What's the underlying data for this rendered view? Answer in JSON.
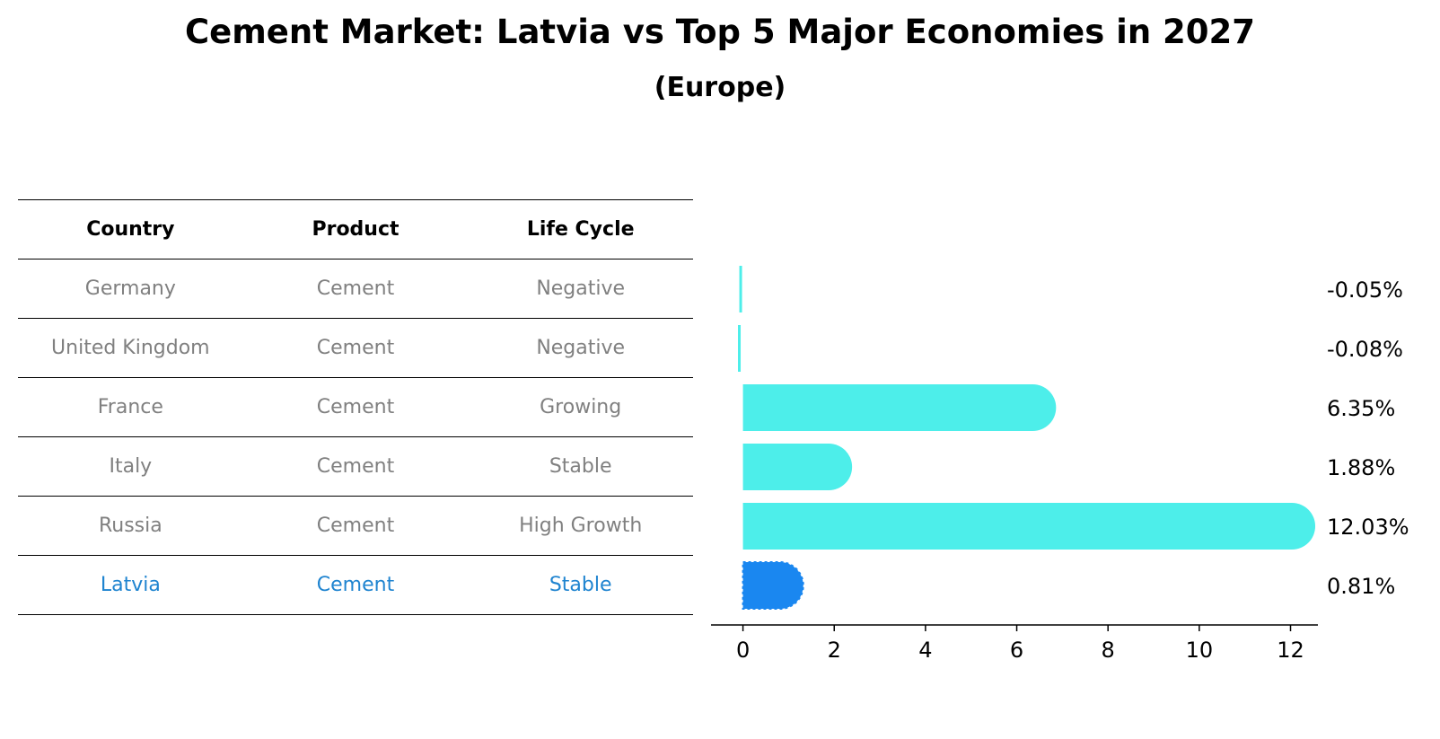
{
  "title": "Cement Market: Latvia vs Top 5 Major Economies in 2027",
  "subtitle": "(Europe)",
  "table": {
    "headers": [
      "Country",
      "Product",
      "Life Cycle"
    ],
    "rows": [
      [
        "Germany",
        "Cement",
        "Negative"
      ],
      [
        "United Kingdom",
        "Cement",
        "Negative"
      ],
      [
        "France",
        "Cement",
        "Growing"
      ],
      [
        "Italy",
        "Cement",
        "Stable"
      ],
      [
        "Russia",
        "Cement",
        "High Growth"
      ],
      [
        "Latvia",
        "Cement",
        "Stable"
      ]
    ]
  },
  "chart_data": {
    "type": "bar",
    "orientation": "horizontal",
    "categories": [
      "Germany",
      "United Kingdom",
      "France",
      "Italy",
      "Russia",
      "Latvia"
    ],
    "values": [
      -0.05,
      -0.08,
      6.35,
      1.88,
      12.03,
      0.81
    ],
    "value_labels": [
      "-0.05%",
      "-0.08%",
      "6.35%",
      "1.88%",
      "12.03%",
      "0.81%"
    ],
    "xlim": [
      -0.7,
      12.6
    ],
    "xticks": [
      0,
      2,
      4,
      6,
      8,
      10,
      12
    ],
    "colors": {
      "default": "#4deeea",
      "highlight": "#1a87f0"
    },
    "highlight_index": 5
  }
}
